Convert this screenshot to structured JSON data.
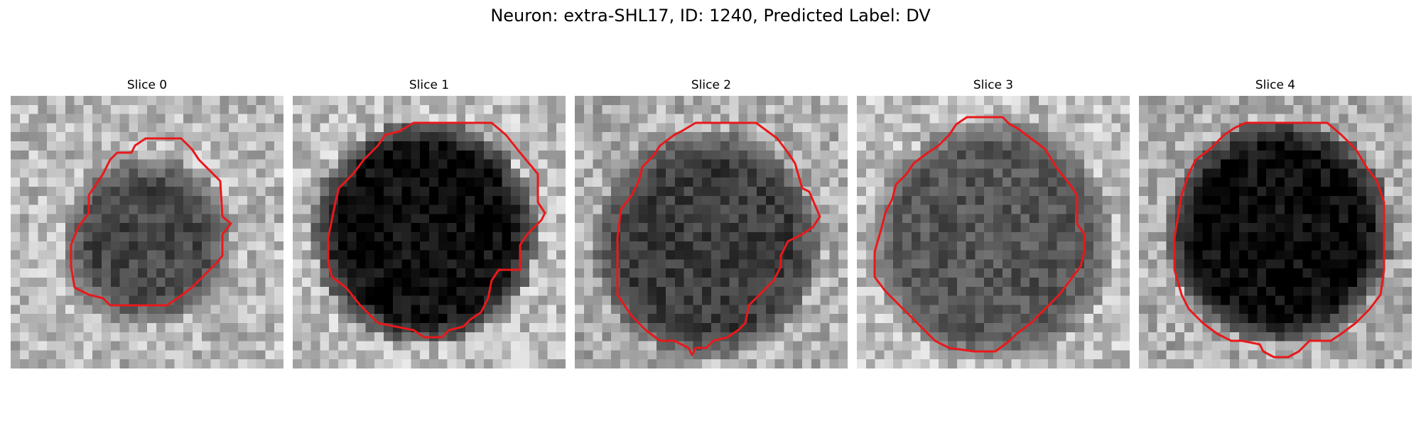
{
  "figure": {
    "title": "Neuron: extra-SHL17, ID: 1240, Predicted Label: DV",
    "contour_color": "#e8191b",
    "colormap": "grayscale"
  },
  "panels": [
    {
      "title": "Slice 0",
      "blob": "partial"
    },
    {
      "title": "Slice 1",
      "blob": "very dark"
    },
    {
      "title": "Slice 2",
      "blob": "dark"
    },
    {
      "title": "Slice 3",
      "blob": "medium dark"
    },
    {
      "title": "Slice 4",
      "blob": "very dark"
    }
  ]
}
